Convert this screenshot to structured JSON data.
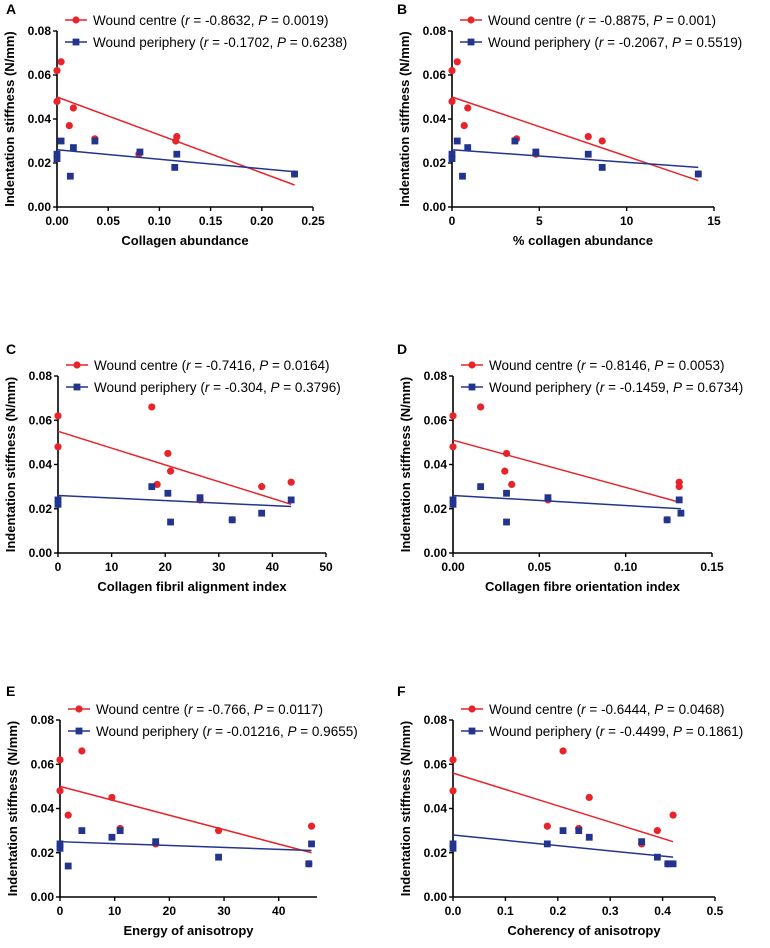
{
  "colors": {
    "centre": "#e8242a",
    "periphery": "#23348f",
    "axis": "#000000"
  },
  "chart_data": [
    {
      "panel": "A",
      "type": "scatter",
      "xlabel": "Collagen abundance",
      "ylabel": "Indentation stiffness (N/mm)",
      "xlim": [
        0,
        0.25
      ],
      "ylim": [
        0,
        0.08
      ],
      "xticks": [
        "0.00",
        "0.05",
        "0.10",
        "0.15",
        "0.20",
        "0.25"
      ],
      "yticks": [
        "0.00",
        "0.02",
        "0.04",
        "0.06",
        "0.08"
      ],
      "series": [
        {
          "key": "centre",
          "name": "Wound centre",
          "r": "-0.8632",
          "p": "0.0019",
          "x": [
            0.0,
            0.0,
            0.004,
            0.012,
            0.016,
            0.037,
            0.08,
            0.116,
            0.117,
            0.232
          ],
          "y": [
            0.062,
            0.048,
            0.066,
            0.037,
            0.045,
            0.031,
            0.024,
            0.03,
            0.032,
            0.015
          ],
          "fit": [
            0.0,
            0.05,
            0.232,
            0.01
          ]
        },
        {
          "key": "periphery",
          "name": "Wound periphery",
          "r": "-0.1702",
          "p": "0.6238",
          "x": [
            0.0,
            0.0,
            0.004,
            0.013,
            0.016,
            0.037,
            0.081,
            0.115,
            0.117,
            0.232
          ],
          "y": [
            0.022,
            0.024,
            0.03,
            0.014,
            0.027,
            0.03,
            0.025,
            0.018,
            0.024,
            0.015
          ],
          "fit": [
            0.0,
            0.026,
            0.232,
            0.016
          ]
        }
      ]
    },
    {
      "panel": "B",
      "type": "scatter",
      "xlabel": "% collagen abundance",
      "ylabel": "Indentation stiffness (N/mm)",
      "xlim": [
        0,
        15
      ],
      "ylim": [
        0,
        0.08
      ],
      "xticks": [
        "0",
        "5",
        "10",
        "15"
      ],
      "yticks": [
        "0.00",
        "0.02",
        "0.04",
        "0.06",
        "0.08"
      ],
      "series": [
        {
          "key": "centre",
          "name": "Wound centre",
          "r": "-0.8875",
          "p": "0.001",
          "x": [
            0.0,
            0.0,
            0.3,
            0.7,
            0.9,
            3.7,
            4.8,
            7.8,
            8.6,
            14.1
          ],
          "y": [
            0.062,
            0.048,
            0.066,
            0.037,
            0.045,
            0.031,
            0.024,
            0.032,
            0.03,
            0.015
          ],
          "fit": [
            0.0,
            0.05,
            14.1,
            0.012
          ]
        },
        {
          "key": "periphery",
          "name": "Wound periphery",
          "r": "-0.2067",
          "p": "0.5519",
          "x": [
            0.0,
            0.0,
            0.3,
            0.6,
            0.9,
            3.6,
            4.8,
            7.8,
            8.6,
            14.1
          ],
          "y": [
            0.022,
            0.024,
            0.03,
            0.014,
            0.027,
            0.03,
            0.025,
            0.024,
            0.018,
            0.015
          ],
          "fit": [
            0.0,
            0.026,
            14.1,
            0.018
          ]
        }
      ]
    },
    {
      "panel": "C",
      "type": "scatter",
      "xlabel": "Collagen fibril alignment index",
      "ylabel": "Indentation stiffness (N/mm)",
      "xlim": [
        0,
        50
      ],
      "ylim": [
        0,
        0.08
      ],
      "xticks": [
        "0",
        "10",
        "20",
        "30",
        "40",
        "50"
      ],
      "yticks": [
        "0.00",
        "0.02",
        "0.04",
        "0.06",
        "0.08"
      ],
      "series": [
        {
          "key": "centre",
          "name": "Wound centre",
          "r": "-0.7416",
          "p": "0.0164",
          "x": [
            0.0,
            0.0,
            17.5,
            18.5,
            20.5,
            21.0,
            26.5,
            32.5,
            38.0,
            43.5
          ],
          "y": [
            0.062,
            0.048,
            0.066,
            0.031,
            0.045,
            0.037,
            0.024,
            0.015,
            0.03,
            0.032
          ],
          "fit": [
            0.0,
            0.055,
            43.5,
            0.022
          ]
        },
        {
          "key": "periphery",
          "name": "Wound periphery",
          "r": "-0.304",
          "p": "0.3796",
          "x": [
            0.0,
            0.0,
            17.5,
            20.5,
            21.0,
            26.5,
            32.5,
            38.0,
            43.5
          ],
          "y": [
            0.022,
            0.024,
            0.03,
            0.027,
            0.014,
            0.025,
            0.015,
            0.018,
            0.024
          ],
          "fit": [
            0.0,
            0.026,
            43.5,
            0.021
          ]
        }
      ]
    },
    {
      "panel": "D",
      "type": "scatter",
      "xlabel": "Collagen fibre orientation index",
      "ylabel": "Indentation stiffness (N/mm)",
      "xlim": [
        0,
        0.15
      ],
      "ylim": [
        0,
        0.08
      ],
      "xticks": [
        "0.00",
        "0.05",
        "0.10",
        "0.15"
      ],
      "yticks": [
        "0.00",
        "0.02",
        "0.04",
        "0.06",
        "0.08"
      ],
      "series": [
        {
          "key": "centre",
          "name": "Wound centre",
          "r": "-0.8146",
          "p": "0.0053",
          "x": [
            0.0,
            0.0,
            0.016,
            0.03,
            0.031,
            0.034,
            0.055,
            0.124,
            0.131,
            0.131
          ],
          "y": [
            0.062,
            0.048,
            0.066,
            0.037,
            0.045,
            0.031,
            0.024,
            0.015,
            0.032,
            0.03
          ],
          "fit": [
            0.0,
            0.051,
            0.131,
            0.023
          ]
        },
        {
          "key": "periphery",
          "name": "Wound periphery",
          "r": "-0.1459",
          "p": "0.6734",
          "x": [
            0.0,
            0.0,
            0.016,
            0.031,
            0.031,
            0.055,
            0.124,
            0.131,
            0.132
          ],
          "y": [
            0.022,
            0.024,
            0.03,
            0.014,
            0.027,
            0.025,
            0.015,
            0.024,
            0.018
          ],
          "fit": [
            0.0,
            0.026,
            0.132,
            0.02
          ]
        }
      ]
    },
    {
      "panel": "E",
      "type": "scatter",
      "xlabel": "Energy of anisotropy",
      "ylabel": "Indentation stiffness (N/mm)",
      "xlim": [
        0,
        47
      ],
      "ylim": [
        0,
        0.08
      ],
      "xticks": [
        "0",
        "10",
        "20",
        "30",
        "40"
      ],
      "yticks": [
        "0.00",
        "0.02",
        "0.04",
        "0.06",
        "0.08"
      ],
      "series": [
        {
          "key": "centre",
          "name": "Wound centre",
          "r": "-0.766",
          "p": "0.0117",
          "x": [
            0.0,
            0.0,
            1.5,
            4.0,
            9.5,
            11.0,
            17.5,
            29.0,
            45.5,
            46.0
          ],
          "y": [
            0.062,
            0.048,
            0.037,
            0.066,
            0.045,
            0.031,
            0.024,
            0.03,
            0.015,
            0.032
          ],
          "fit": [
            0.0,
            0.05,
            46.0,
            0.02
          ]
        },
        {
          "key": "periphery",
          "name": "Wound periphery",
          "r": "-0.01216",
          "p": "0.9655",
          "x": [
            0.0,
            0.0,
            1.5,
            4.0,
            9.5,
            11.0,
            17.5,
            29.0,
            45.5,
            46.0
          ],
          "y": [
            0.022,
            0.024,
            0.014,
            0.03,
            0.027,
            0.03,
            0.025,
            0.018,
            0.015,
            0.024
          ],
          "fit": [
            0.0,
            0.025,
            46.0,
            0.021
          ]
        }
      ]
    },
    {
      "panel": "F",
      "type": "scatter",
      "xlabel": "Coherency of anisotropy",
      "ylabel": "Indentation stiffness (N/mm)",
      "xlim": [
        0,
        0.5
      ],
      "ylim": [
        0,
        0.08
      ],
      "xticks": [
        "0.0",
        "0.1",
        "0.2",
        "0.3",
        "0.4",
        "0.5"
      ],
      "yticks": [
        "0.00",
        "0.02",
        "0.04",
        "0.06",
        "0.08"
      ],
      "series": [
        {
          "key": "centre",
          "name": "Wound centre",
          "r": "-0.6444",
          "p": "0.0468",
          "x": [
            0.0,
            0.0,
            0.18,
            0.21,
            0.24,
            0.26,
            0.36,
            0.39,
            0.41,
            0.42
          ],
          "y": [
            0.062,
            0.048,
            0.032,
            0.066,
            0.031,
            0.045,
            0.024,
            0.03,
            0.015,
            0.037
          ],
          "fit": [
            0.0,
            0.056,
            0.42,
            0.025
          ]
        },
        {
          "key": "periphery",
          "name": "Wound periphery",
          "r": "-0.4499",
          "p": "0.1861",
          "x": [
            0.0,
            0.0,
            0.18,
            0.21,
            0.24,
            0.26,
            0.36,
            0.39,
            0.41,
            0.42
          ],
          "y": [
            0.022,
            0.024,
            0.024,
            0.03,
            0.03,
            0.027,
            0.025,
            0.018,
            0.015,
            0.015
          ],
          "fit": [
            0.0,
            0.028,
            0.42,
            0.018
          ]
        }
      ]
    }
  ]
}
